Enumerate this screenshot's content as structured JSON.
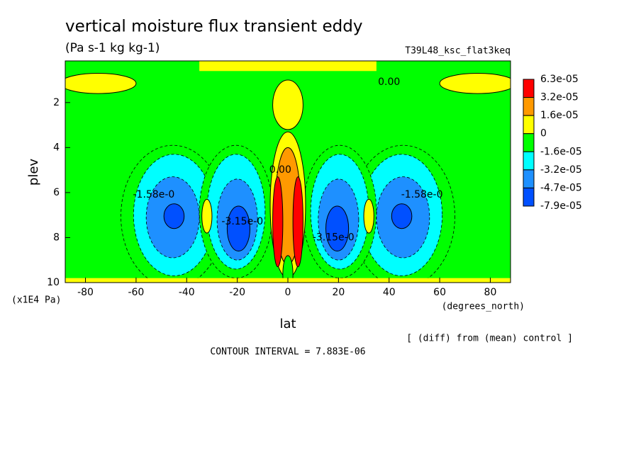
{
  "chart_data": {
    "type": "contour",
    "title": "vertical moisture flux transient eddy",
    "subtitle": "(Pa s-1 kg kg-1)",
    "run_name": "T39L48_ksc_flat3keq",
    "x_label": "lat",
    "x_unit": "(degrees_north)",
    "y_label": "plev",
    "y_unit": "(x1E4 Pa)",
    "note": "[ (diff) from (mean) control ]",
    "contour_interval": "CONTOUR INTERVAL = 7.883E-06",
    "xlim": [
      -88,
      88
    ],
    "xticks": [
      -80,
      -60,
      -40,
      -20,
      0,
      20,
      40,
      60,
      80
    ],
    "ylim": [
      10,
      0.15
    ],
    "yticks": [
      2,
      4,
      6,
      8,
      10
    ],
    "levels": [
      {
        "value": 6.3e-05,
        "label": "6.3e-05"
      },
      {
        "value": 3.2e-05,
        "label": "3.2e-05"
      },
      {
        "value": 1.6e-05,
        "label": "1.6e-05"
      },
      0,
      {
        "value": -1.6e-05,
        "label": "-1.6e-05"
      },
      {
        "value": -3.2e-05,
        "label": "-3.2e-05"
      },
      {
        "value": -4.7e-05,
        "label": "-4.7e-05"
      },
      {
        "value": -7.9e-05,
        "label": "-7.9e-05"
      }
    ],
    "colors": [
      "#ff0000",
      "#ff9900",
      "#ffff00",
      "#00ff00",
      "#00ffff",
      "#1e90ff",
      "#0050ff"
    ],
    "contour_labels": [
      "0.00",
      "-1.58e-0",
      "-1.58e-0",
      "-3.15e-0",
      "-3.15e-0",
      "0.00"
    ]
  }
}
